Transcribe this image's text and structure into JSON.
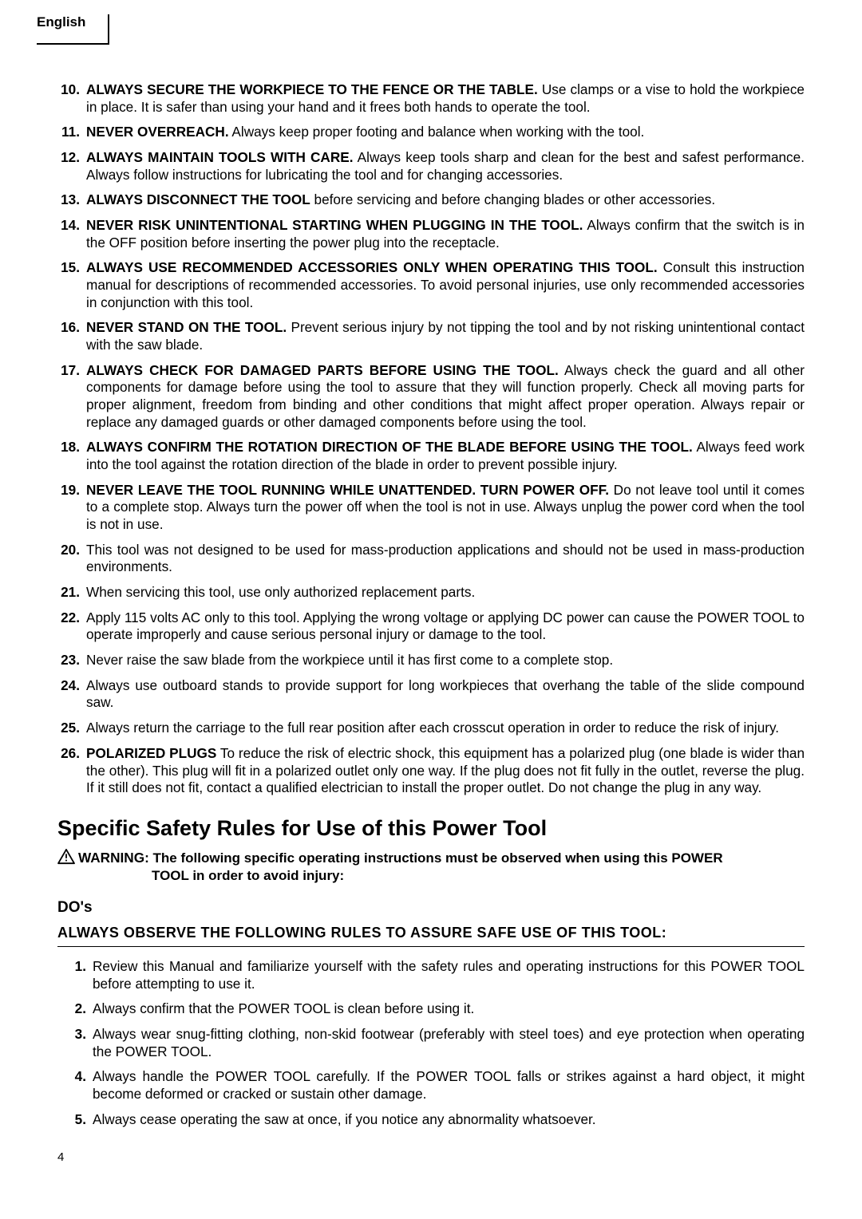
{
  "language_tab": "English",
  "rules": [
    {
      "n": "10.",
      "hd": "ALWAYS SECURE THE WORKPIECE TO THE FENCE OR THE TABLE.",
      "txt": " Use clamps or a vise to hold the workpiece in place. It is safer than using your hand and it frees both hands to operate the tool."
    },
    {
      "n": "11.",
      "hd": "NEVER OVERREACH.",
      "txt": " Always keep proper footing and balance when working with the tool."
    },
    {
      "n": "12.",
      "hd": "ALWAYS MAINTAIN TOOLS WITH CARE.",
      "txt": " Always keep tools sharp and clean for the best and safest performance. Always follow instructions for lubricating the tool and for changing accessories."
    },
    {
      "n": "13.",
      "hd": "ALWAYS DISCONNECT THE TOOL",
      "txt": " before servicing and before changing blades or other accessories."
    },
    {
      "n": "14.",
      "hd": "NEVER RISK UNINTENTIONAL STARTING WHEN PLUGGING IN THE TOOL.",
      "txt": " Always confirm that the switch is in the OFF position before inserting the power plug into the receptacle."
    },
    {
      "n": "15.",
      "hd": "ALWAYS USE RECOMMENDED ACCESSORIES ONLY WHEN OPERATING THIS TOOL.",
      "txt": " Consult this instruction manual for descriptions of recommended accessories. To avoid personal injuries, use only recommended accessories in conjunction with this tool."
    },
    {
      "n": "16.",
      "hd": "NEVER STAND ON THE TOOL.",
      "txt": " Prevent serious injury by not tipping the tool and by not risking unintentional contact with the saw blade."
    },
    {
      "n": "17.",
      "hd": "ALWAYS CHECK FOR DAMAGED PARTS BEFORE USING THE TOOL.",
      "txt": " Always check the guard and all other components for damage before using the tool to assure that they will function properly. Check all moving parts for proper alignment, freedom from binding and other conditions that might affect proper operation. Always repair or replace any damaged guards or other damaged components before using the tool."
    },
    {
      "n": "18.",
      "hd": "ALWAYS CONFIRM THE ROTATION DIRECTION OF THE BLADE BEFORE USING THE TOOL.",
      "txt": " Always feed work into the tool against the rotation direction of the blade in order to prevent possible injury."
    },
    {
      "n": "19.",
      "hd": "NEVER LEAVE THE TOOL RUNNING WHILE UNATTENDED. TURN POWER OFF.",
      "txt": "  Do not leave tool until it comes to a complete stop. Always turn the power off when the tool is not in use. Always unplug the power cord when the tool is not in use."
    },
    {
      "n": "20.",
      "hd": "",
      "txt": "This tool was not designed to be used for mass-production applications and should not be used in mass-production environments."
    },
    {
      "n": "21.",
      "hd": "",
      "txt": "When servicing this tool, use only authorized replacement parts."
    },
    {
      "n": "22.",
      "hd": "",
      "txt": "Apply 115 volts AC only to this tool. Applying the wrong voltage or applying DC power can cause the POWER TOOL to operate improperly and cause serious personal injury or damage to the tool."
    },
    {
      "n": "23.",
      "hd": "",
      "txt": "Never raise the saw blade from the workpiece until it has first come to a complete stop."
    },
    {
      "n": "24.",
      "hd": "",
      "txt": "Always use outboard stands to provide support for long workpieces that overhang the table of the slide compound saw."
    },
    {
      "n": "25.",
      "hd": "",
      "txt": "Always return the carriage to the full rear position after each crosscut operation in order to reduce the risk of injury."
    },
    {
      "n": "26.",
      "hd": "POLARIZED PLUGS",
      "txt": " To reduce the risk of electric shock, this equipment has a polarized plug (one blade is wider than the other). This plug will fit in a polarized outlet only one way. If the plug does not fit fully in the outlet, reverse the plug. If it still does not fit, contact a qualified electrician to install the proper outlet. Do not change the plug in any way."
    }
  ],
  "section_heading": "Specific Safety Rules for Use of this Power Tool",
  "warning": {
    "label": "WARNING:",
    "line1": " The following specific operating instructions must be observed when using this POWER",
    "line2": "TOOL in order to avoid injury:"
  },
  "dos_heading": "DO's",
  "observe_heading": "ALWAYS OBSERVE THE FOLLOWING RULES TO ASSURE SAFE USE OF THIS TOOL:",
  "dos": [
    {
      "n": "1.",
      "txt": "Review this Manual and familiarize yourself with the safety rules and operating instructions for this POWER TOOL before attempting to use it."
    },
    {
      "n": "2.",
      "txt": "Always confirm that the POWER TOOL is clean before using it."
    },
    {
      "n": "3.",
      "txt": "Always wear snug-fitting clothing, non-skid footwear (preferably with steel toes) and eye protection when operating the POWER TOOL."
    },
    {
      "n": "4.",
      "txt": "Always handle the POWER TOOL carefully. If the POWER TOOL falls or strikes against a hard object, it might become deformed or cracked or sustain other damage."
    },
    {
      "n": "5.",
      "txt": "Always cease operating the saw at once, if you notice any abnormality whatsoever."
    }
  ],
  "page_number": "4"
}
